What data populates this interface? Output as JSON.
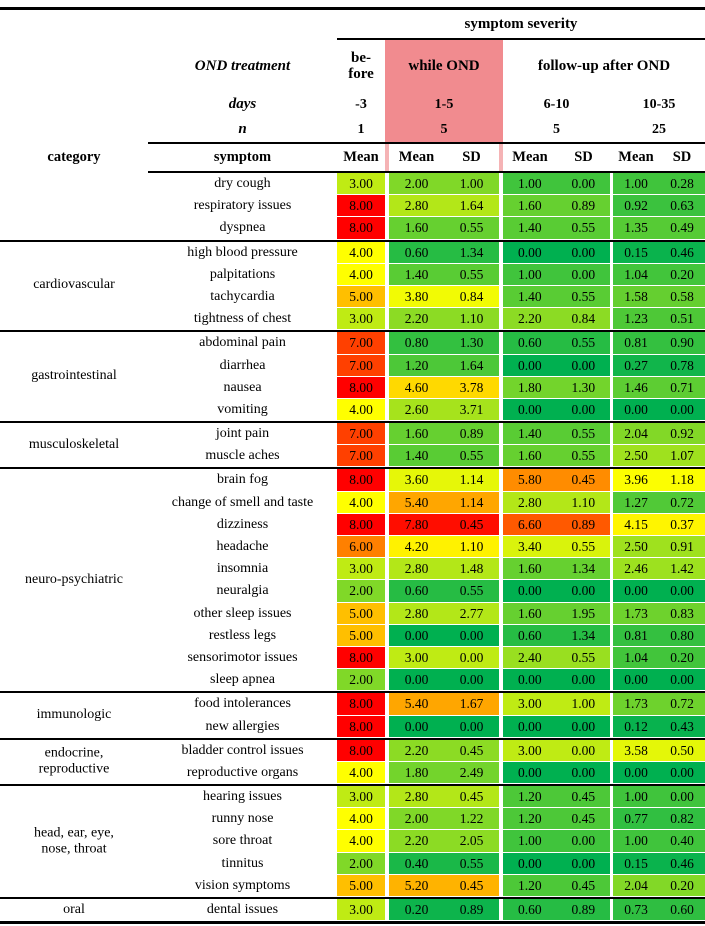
{
  "header": {
    "title": "symptom severity",
    "ond_treatment_label": "OND treatment",
    "days_label": "days",
    "n_label": "n",
    "category_label": "category",
    "symptom_label": "symptom",
    "mean_label": "Mean",
    "sd_label": "SD",
    "phases": {
      "before_label": "be-\nfore",
      "while_label": "while OND",
      "followup_label": "follow-up after OND",
      "days": {
        "before": "-3",
        "while_ond": "1-5",
        "followup_1": "6-10",
        "followup_2": "10-35"
      },
      "n": {
        "before": "1",
        "while_ond": "5",
        "followup_1": "5",
        "followup_2": "25"
      }
    }
  },
  "colors": {
    "heat_min_color": "#00B050",
    "heat_mid_color": "#FFFF00",
    "heat_max_color": "#FF0000",
    "heat_min_value": 0,
    "heat_mid_value": 4,
    "heat_max_value": 8,
    "while_highlight": "#F18B8F",
    "column_divider_pink": "#F5B3B5"
  },
  "chart_data": {
    "type": "heatmap",
    "title": "symptom severity",
    "value_columns": [
      "before Mean",
      "while OND Mean",
      "while OND SD",
      "follow-up 6-10 Mean",
      "follow-up 6-10 SD",
      "follow-up 10-35 Mean",
      "follow-up 10-35 SD"
    ],
    "color_scale": {
      "min": [
        0,
        "#00B050"
      ],
      "mid": [
        4,
        "#FFFF00"
      ],
      "max": [
        8,
        "#FF0000"
      ],
      "note": "Mean and SD cell pairs are shaded by the Mean value"
    },
    "groups": [
      {
        "category": "",
        "rows": [
          {
            "symptom": "dry cough",
            "values": [
              3.0,
              2.0,
              1.0,
              1.0,
              0.0,
              1.0,
              0.28
            ]
          },
          {
            "symptom": "respiratory issues",
            "values": [
              8.0,
              2.8,
              1.64,
              1.6,
              0.89,
              0.92,
              0.63
            ]
          },
          {
            "symptom": "dyspnea",
            "values": [
              8.0,
              1.6,
              0.55,
              1.4,
              0.55,
              1.35,
              0.49
            ]
          }
        ]
      },
      {
        "category": "cardiovascular",
        "rows": [
          {
            "symptom": "high blood pressure",
            "values": [
              4.0,
              0.6,
              1.34,
              0.0,
              0.0,
              0.15,
              0.46
            ]
          },
          {
            "symptom": "palpitations",
            "values": [
              4.0,
              1.4,
              0.55,
              1.0,
              0.0,
              1.04,
              0.2
            ]
          },
          {
            "symptom": "tachycardia",
            "values": [
              5.0,
              3.8,
              0.84,
              1.4,
              0.55,
              1.58,
              0.58
            ]
          },
          {
            "symptom": "tightness of chest",
            "values": [
              3.0,
              2.2,
              1.1,
              2.2,
              0.84,
              1.23,
              0.51
            ]
          }
        ]
      },
      {
        "category": "gastrointestinal",
        "rows": [
          {
            "symptom": "abdominal pain",
            "values": [
              7.0,
              0.8,
              1.3,
              0.6,
              0.55,
              0.81,
              0.9
            ]
          },
          {
            "symptom": "diarrhea",
            "values": [
              7.0,
              1.2,
              1.64,
              0.0,
              0.0,
              0.27,
              0.78
            ]
          },
          {
            "symptom": "nausea",
            "values": [
              8.0,
              4.6,
              3.78,
              1.8,
              1.3,
              1.46,
              0.71
            ]
          },
          {
            "symptom": "vomiting",
            "values": [
              4.0,
              2.6,
              3.71,
              0.0,
              0.0,
              0.0,
              0.0
            ]
          }
        ]
      },
      {
        "category": "musculoskeletal",
        "rows": [
          {
            "symptom": "joint pain",
            "values": [
              7.0,
              1.6,
              0.89,
              1.4,
              0.55,
              2.04,
              0.92
            ]
          },
          {
            "symptom": "muscle aches",
            "values": [
              7.0,
              1.4,
              0.55,
              1.6,
              0.55,
              2.5,
              1.07
            ]
          }
        ]
      },
      {
        "category": "neuro-psychiatric",
        "rows": [
          {
            "symptom": "brain fog",
            "values": [
              8.0,
              3.6,
              1.14,
              5.8,
              0.45,
              3.96,
              1.18
            ]
          },
          {
            "symptom": "change of smell and taste",
            "values": [
              4.0,
              5.4,
              1.14,
              2.8,
              1.1,
              1.27,
              0.72
            ]
          },
          {
            "symptom": "dizziness",
            "values": [
              8.0,
              7.8,
              0.45,
              6.6,
              0.89,
              4.15,
              0.37
            ]
          },
          {
            "symptom": "headache",
            "values": [
              6.0,
              4.2,
              1.1,
              3.4,
              0.55,
              2.5,
              0.91
            ]
          },
          {
            "symptom": "insomnia",
            "values": [
              3.0,
              2.8,
              1.48,
              1.6,
              1.34,
              2.46,
              1.42
            ]
          },
          {
            "symptom": "neuralgia",
            "values": [
              2.0,
              0.6,
              0.55,
              0.0,
              0.0,
              0.0,
              0.0
            ]
          },
          {
            "symptom": "other sleep issues",
            "values": [
              5.0,
              2.8,
              2.77,
              1.6,
              1.95,
              1.73,
              0.83
            ]
          },
          {
            "symptom": "restless legs",
            "values": [
              5.0,
              0.0,
              0.0,
              0.6,
              1.34,
              0.81,
              0.8
            ]
          },
          {
            "symptom": "sensorimotor issues",
            "values": [
              8.0,
              3.0,
              0.0,
              2.4,
              0.55,
              1.04,
              0.2
            ]
          },
          {
            "symptom": "sleep apnea",
            "values": [
              2.0,
              0.0,
              0.0,
              0.0,
              0.0,
              0.0,
              0.0
            ]
          }
        ]
      },
      {
        "category": "immunologic",
        "rows": [
          {
            "symptom": "food intolerances",
            "values": [
              8.0,
              5.4,
              1.67,
              3.0,
              1.0,
              1.73,
              0.72
            ]
          },
          {
            "symptom": "new allergies",
            "values": [
              8.0,
              0.0,
              0.0,
              0.0,
              0.0,
              0.12,
              0.43
            ]
          }
        ]
      },
      {
        "category": "endocrine,\nreproductive",
        "rows": [
          {
            "symptom": "bladder control issues",
            "values": [
              8.0,
              2.2,
              0.45,
              3.0,
              0.0,
              3.58,
              0.5
            ]
          },
          {
            "symptom": "reproductive organs",
            "values": [
              4.0,
              1.8,
              2.49,
              0.0,
              0.0,
              0.0,
              0.0
            ]
          }
        ]
      },
      {
        "category": "head, ear, eye,\nnose, throat",
        "rows": [
          {
            "symptom": "hearing issues",
            "values": [
              3.0,
              2.8,
              0.45,
              1.2,
              0.45,
              1.0,
              0.0
            ]
          },
          {
            "symptom": "runny nose",
            "values": [
              4.0,
              2.0,
              1.22,
              1.2,
              0.45,
              0.77,
              0.82
            ]
          },
          {
            "symptom": "sore throat",
            "values": [
              4.0,
              2.2,
              2.05,
              1.0,
              0.0,
              1.0,
              0.4
            ]
          },
          {
            "symptom": "tinnitus",
            "values": [
              2.0,
              0.4,
              0.55,
              0.0,
              0.0,
              0.15,
              0.46
            ]
          },
          {
            "symptom": "vision symptoms",
            "values": [
              5.0,
              5.2,
              0.45,
              1.2,
              0.45,
              2.04,
              0.2
            ]
          }
        ]
      },
      {
        "category": "oral",
        "rows": [
          {
            "symptom": "dental issues",
            "values": [
              3.0,
              0.2,
              0.89,
              0.6,
              0.89,
              0.73,
              0.6
            ]
          }
        ]
      }
    ]
  }
}
